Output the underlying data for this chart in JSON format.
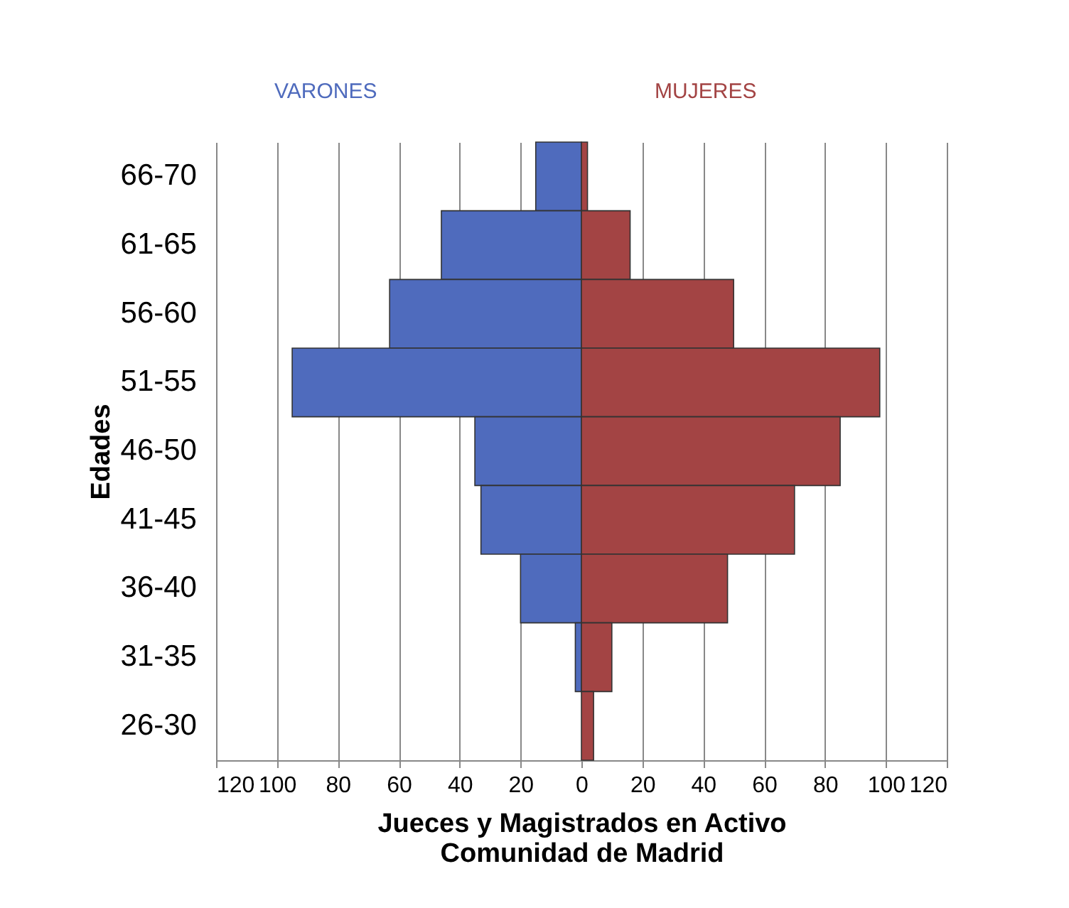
{
  "chart_data": {
    "type": "bar",
    "orientation": "horizontal",
    "stacked": true,
    "categories": [
      "66-70",
      "61-65",
      "56-60",
      "51-55",
      "46-50",
      "41-45",
      "36-40",
      "31-35",
      "26-30"
    ],
    "series": [
      {
        "name": "VARONES",
        "color": "#4f6bbd",
        "values": [
          -15,
          -46,
          -63,
          -95,
          -35,
          -33,
          -20,
          -2,
          0
        ]
      },
      {
        "name": "MUJERES",
        "color": "#a34444",
        "values": [
          2,
          16,
          50,
          98,
          85,
          70,
          48,
          10,
          4
        ]
      }
    ],
    "xlim": [
      -120,
      120
    ],
    "xticks": [
      {
        "value": -120,
        "label": "120"
      },
      {
        "value": -100,
        "label": "100"
      },
      {
        "value": -80,
        "label": "80"
      },
      {
        "value": -60,
        "label": "60"
      },
      {
        "value": -40,
        "label": "40"
      },
      {
        "value": -20,
        "label": "20"
      },
      0,
      20,
      40,
      60,
      80,
      100,
      120
    ],
    "xlabel": "Jueces y Magistrados   en Activo\nComunidad de Madrid",
    "ylabel": "Edades",
    "grid": "x",
    "legend": false
  }
}
